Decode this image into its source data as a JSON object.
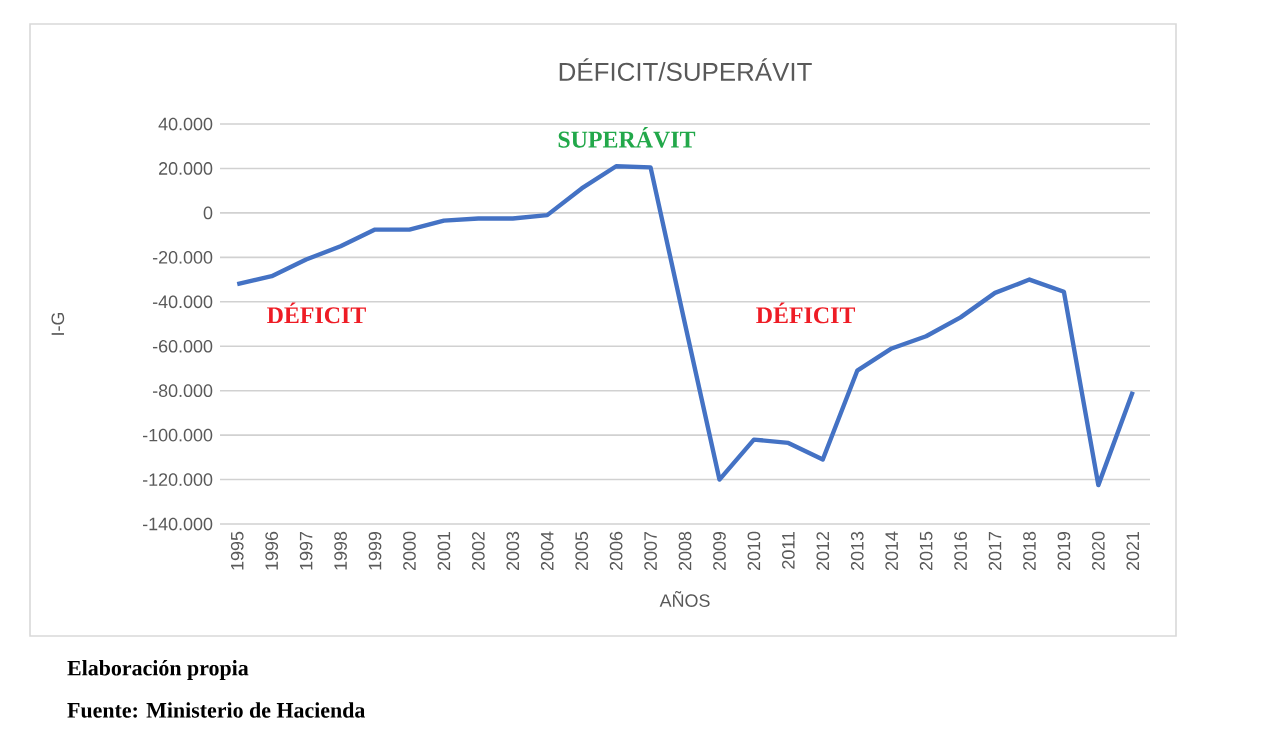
{
  "chart_data": {
    "type": "line",
    "title": "DÉFICIT/SUPERÁVIT",
    "xlabel": "AÑOS",
    "ylabel": "I-G",
    "categories": [
      "1995",
      "1996",
      "1997",
      "1998",
      "1999",
      "2000",
      "2001",
      "2002",
      "2003",
      "2004",
      "2005",
      "2006",
      "2007",
      "2008",
      "2009",
      "2010",
      "2011",
      "2012",
      "2013",
      "2014",
      "2015",
      "2016",
      "2017",
      "2018",
      "2019",
      "2020",
      "2021"
    ],
    "series": [
      {
        "color": "#4472c4",
        "values": [
          -32000,
          -28500,
          -21000,
          -15000,
          -7500,
          -7500,
          -3500,
          -2500,
          -2500,
          -1000,
          11000,
          21000,
          20500,
          -50000,
          -120000,
          -102000,
          -103500,
          -111000,
          -71000,
          -61000,
          -55500,
          -47000,
          -36000,
          -30000,
          -35500,
          -122500,
          -80500
        ]
      }
    ],
    "ylim": [
      -140000,
      40000
    ],
    "yticks": [
      {
        "value": -140000,
        "label": "-140.000"
      },
      {
        "value": -120000,
        "label": "-120.000"
      },
      {
        "value": -100000,
        "label": "-100.000"
      },
      {
        "value": -80000,
        "label": "-80.000"
      },
      {
        "value": -60000,
        "label": "-60.000"
      },
      {
        "value": -40000,
        "label": "-40.000"
      },
      {
        "value": -20000,
        "label": "-20.000"
      },
      {
        "value": 0,
        "label": "0"
      },
      {
        "value": 20000,
        "label": "20.000"
      },
      {
        "value": 40000,
        "label": "40.000"
      }
    ],
    "grid": "y",
    "marker": "none",
    "line_style": "solid",
    "annotations": [
      "SUPERÁVIT",
      "DÉFICIT",
      "DÉFICIT",
      "Elaboración propia",
      "Fuente: Ministerio de Hacienda"
    ]
  }
}
